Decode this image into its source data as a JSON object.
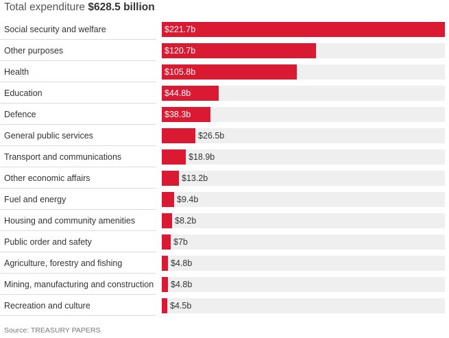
{
  "header": {
    "prefix": "Total expenditure",
    "total": "$628.5 billion"
  },
  "source": "Source: TREASURY PAPERS",
  "colors": {
    "bar": "#d91a32",
    "track": "#efefef"
  },
  "chart_data": {
    "type": "bar",
    "orientation": "horizontal",
    "title": "Total expenditure $628.5 billion",
    "unit": "$ billion",
    "xlim": [
      0,
      221.7
    ],
    "grid": false,
    "categories": [
      "Social security and welfare",
      "Other purposes",
      "Health",
      "Education",
      "Defence",
      "General public services",
      "Transport and communications",
      "Other economic affairs",
      "Fuel and energy",
      "Housing and community amenities",
      "Public order and safety",
      "Agriculture, forestry and fishing",
      "Mining, manufacturing and construction",
      "Recreation and culture"
    ],
    "values": [
      221.7,
      120.7,
      105.8,
      44.8,
      38.3,
      26.5,
      18.9,
      13.2,
      9.4,
      8.2,
      7,
      4.8,
      4.8,
      4.5
    ],
    "labels": [
      "$221.7b",
      "$120.7b",
      "$105.8b",
      "$44.8b",
      "$38.3b",
      "$26.5b",
      "$18.9b",
      "$13.2b",
      "$9.4b",
      "$8.2b",
      "$7b",
      "$4.8b",
      "$4.8b",
      "$4.5b"
    ]
  }
}
